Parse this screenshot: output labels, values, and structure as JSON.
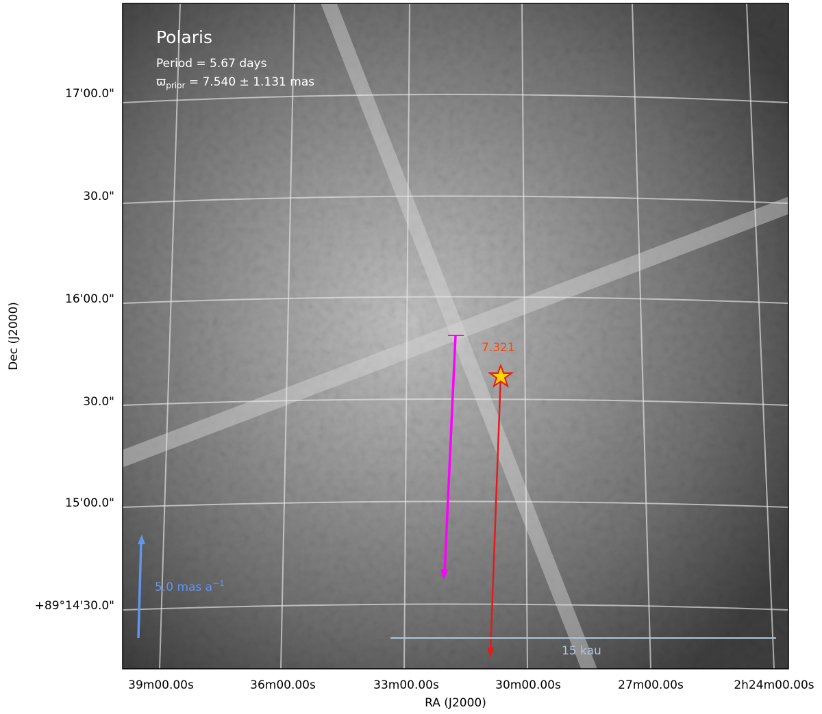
{
  "chart_data": {
    "type": "image",
    "xlabel": "RA (J2000)",
    "ylabel": "Dec (J2000)",
    "xtick_labels": [
      "39m00.00s",
      "36m00.00s",
      "33m00.00s",
      "30m00.00s",
      "27m00.00s",
      "2h24m00.00s"
    ],
    "ytick_labels": [
      "17'00.0\"",
      "30.0\"",
      "16'00.0\"",
      "30.0\"",
      "15'00.0\"",
      "+89°14'30.0\""
    ],
    "annotations": {
      "name": "Polaris",
      "period": "Period =   5.67 days",
      "parallax": {
        "symbol": "ϖ",
        "subscript": "prior",
        "text": " = 7.540 ± 1.131 mas"
      },
      "star_label": "7.321",
      "pm_scale": {
        "text": "5.0 mas a",
        "superscript": "−1"
      },
      "length_scale": "15 kau"
    }
  }
}
